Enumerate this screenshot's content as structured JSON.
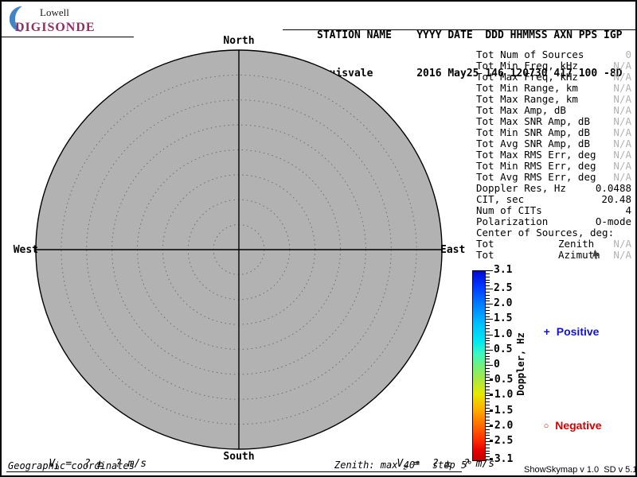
{
  "header": {
    "logo": {
      "line1": "Lowell",
      "line2": "DIGISONDE",
      "crescent_color": "#4285c5",
      "name_color": "#8f2f62"
    },
    "station": {
      "row1": "STATION NAME    YYYY DATE  DDD HHMMSS AXN PPS IGP",
      "row2": "Louisvale       2016 May25 146 120730 417 100 -8D"
    }
  },
  "skymap": {
    "compass": {
      "north": "North",
      "south": "South",
      "west": "West",
      "east": "East"
    },
    "zenith_max_deg": 40,
    "zenith_step_deg": 5,
    "ring_fractions": [
      0.125,
      0.25,
      0.375,
      0.5,
      0.625,
      0.75,
      0.875
    ],
    "fill_color": "#b2b2b2",
    "ring_color": "#6e6e6e",
    "sources": []
  },
  "stats": {
    "rows": [
      {
        "label": "Tot Num of Sources",
        "value": "0",
        "muted": true
      },
      {
        "label": "Tot Min Freq, kHz",
        "value": "N/A",
        "muted": true
      },
      {
        "label": "Tot Max Freq, kHz",
        "value": "N/A",
        "muted": true
      },
      {
        "label": "Tot Min Range, km",
        "value": "N/A",
        "muted": true
      },
      {
        "label": "Tot Max Range, km",
        "value": "N/A",
        "muted": true
      },
      {
        "label": "Tot Max Amp, dB",
        "value": "N/A",
        "muted": true
      },
      {
        "label": "Tot Max SNR Amp, dB",
        "value": "N/A",
        "muted": true
      },
      {
        "label": "Tot Min SNR Amp, dB",
        "value": "N/A",
        "muted": true
      },
      {
        "label": "Tot Avg SNR Amp, dB",
        "value": "N/A",
        "muted": true
      },
      {
        "label": "Tot Max RMS Err, deg",
        "value": "N/A",
        "muted": true
      },
      {
        "label": "Tot Min RMS Err, deg",
        "value": "N/A",
        "muted": true
      },
      {
        "label": "Tot Avg RMS Err, deg",
        "value": "N/A",
        "muted": true
      },
      {
        "label": "Doppler Res, Hz",
        "value": "0.0488",
        "muted": false
      },
      {
        "label": "CIT, sec",
        "value": "20.48",
        "muted": false
      },
      {
        "label": "Num of CITs",
        "value": "4",
        "muted": false
      },
      {
        "label": "Polarization",
        "value": "O-mode",
        "muted": false
      },
      {
        "label": "Center of Sources, deg:",
        "value": "",
        "muted": false
      },
      {
        "label": "Tot",
        "mid": "Zenith",
        "value": "N/A",
        "muted": true
      },
      {
        "label": "Tot",
        "mid": "Azimuth",
        "value": "N/A",
        "muted": true,
        "cursor": true
      }
    ],
    "muted_color": "#b2b2b2"
  },
  "colorbar": {
    "axis_label": "Doppler, Hz",
    "min": -3.1,
    "max": 3.1,
    "minor_step": 0.1,
    "ticks": [
      "3.1",
      "2.5",
      "2.0",
      "1.5",
      "1.0",
      "0.5",
      "0",
      "-0.5",
      "-1.0",
      "-1.5",
      "-2.0",
      "-2.5",
      "-3.1"
    ],
    "gradient": [
      "#0008d0 0%",
      "#0038ff 8%",
      "#0080ff 18%",
      "#00c0ff 28%",
      "#00e8f0 37%",
      "#40f8c0 44%",
      "#72f07e 50%",
      "#a8e845 57%",
      "#e6e800 65%",
      "#ffb000 73%",
      "#ff7000 81%",
      "#ff3000 89%",
      "#e60000 95%",
      "#c00000 100%"
    ]
  },
  "legend": {
    "positive": {
      "symbol": "+",
      "label": "Positive",
      "color": "#1414cc"
    },
    "negative": {
      "symbol": "○",
      "label": "Negative",
      "color": "#d40000"
    }
  },
  "footer": {
    "vh": {
      "base": "V",
      "sub": "h",
      "rest": " =  ? ±  ? m/s"
    },
    "vz": {
      "base": "V",
      "sub": "z",
      "rest": " =  ? ±  ? m/s"
    },
    "coords": "Geographic coordinates",
    "zenith": "Zenith: max 40°  step 5°",
    "version": "ShowSkymap v 1.0  SD v 5.1"
  }
}
